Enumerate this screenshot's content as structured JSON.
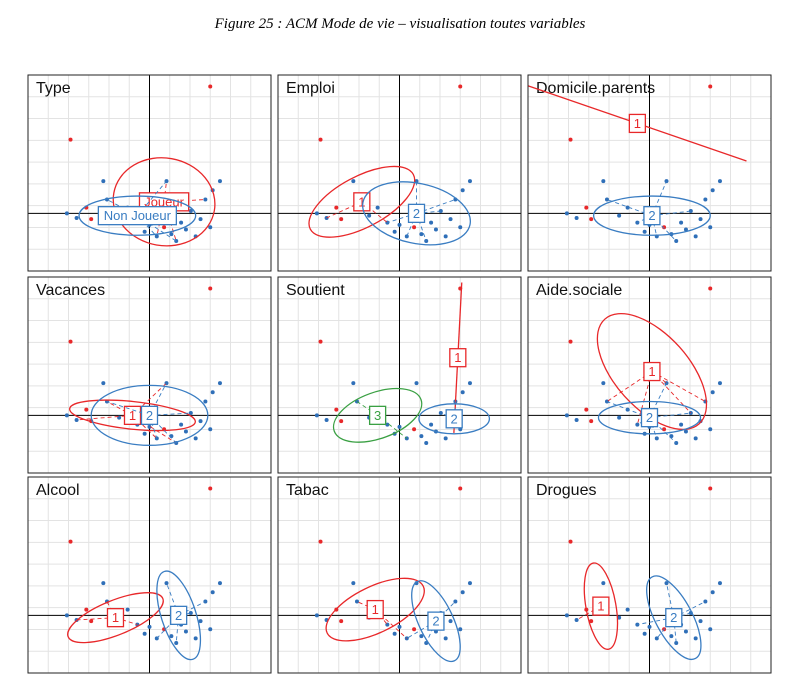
{
  "caption": "Figure 25 : ACM Mode de vie – visualisation toutes variables",
  "colors": {
    "modality_1": "#e8282a",
    "modality_2": "#3a7dc2",
    "modality_3": "#3aa043",
    "axes": "#000000",
    "grid": "#e3e3e3",
    "points": "#2f6fb8"
  },
  "chart_data": {
    "type": "scatter",
    "title": "",
    "grid": true,
    "xlim": [
      -1,
      1
    ],
    "ylim": [
      -0.5,
      1.2
    ],
    "individuals": [
      {
        "x": 0.5,
        "y": 1.1,
        "c": "red"
      },
      {
        "x": -0.65,
        "y": 0.64,
        "c": "red"
      },
      {
        "x": -0.38,
        "y": 0.28,
        "c": "blue"
      },
      {
        "x": 0.14,
        "y": 0.28,
        "c": "blue"
      },
      {
        "x": 0.58,
        "y": 0.28,
        "c": "blue"
      },
      {
        "x": -0.68,
        "y": 0.0,
        "c": "blue"
      },
      {
        "x": -0.6,
        "y": -0.04,
        "c": "blue"
      },
      {
        "x": -0.52,
        "y": 0.05,
        "c": "red"
      },
      {
        "x": -0.48,
        "y": -0.05,
        "c": "red"
      },
      {
        "x": -0.35,
        "y": 0.12,
        "c": "blue"
      },
      {
        "x": -0.25,
        "y": -0.02,
        "c": "blue"
      },
      {
        "x": -0.18,
        "y": 0.05,
        "c": "blue"
      },
      {
        "x": -0.1,
        "y": -0.08,
        "c": "blue"
      },
      {
        "x": -0.04,
        "y": -0.16,
        "c": "blue"
      },
      {
        "x": 0.0,
        "y": -0.1,
        "c": "blue"
      },
      {
        "x": 0.06,
        "y": -0.2,
        "c": "blue"
      },
      {
        "x": 0.12,
        "y": -0.12,
        "c": "red"
      },
      {
        "x": 0.18,
        "y": -0.18,
        "c": "blue"
      },
      {
        "x": 0.22,
        "y": -0.24,
        "c": "blue"
      },
      {
        "x": 0.26,
        "y": -0.08,
        "c": "blue"
      },
      {
        "x": 0.3,
        "y": -0.14,
        "c": "blue"
      },
      {
        "x": 0.34,
        "y": 0.02,
        "c": "blue"
      },
      {
        "x": 0.38,
        "y": -0.2,
        "c": "blue"
      },
      {
        "x": 0.42,
        "y": -0.05,
        "c": "blue"
      },
      {
        "x": 0.46,
        "y": 0.12,
        "c": "blue"
      },
      {
        "x": 0.5,
        "y": -0.12,
        "c": "blue"
      },
      {
        "x": 0.52,
        "y": 0.2,
        "c": "blue"
      }
    ],
    "panels": [
      {
        "title": "Type",
        "categories": [
          {
            "label": "Joueur",
            "color": "red",
            "cx": 0.12,
            "cy": 0.1,
            "rx": 0.42,
            "ry": 0.38,
            "rot": -10
          },
          {
            "label": "Non Joueur",
            "color": "blue",
            "cx": -0.1,
            "cy": -0.02,
            "rx": 0.48,
            "ry": 0.17,
            "rot": 0
          }
        ]
      },
      {
        "title": "Emploi",
        "categories": [
          {
            "label": "1",
            "color": "red",
            "cx": -0.31,
            "cy": 0.1,
            "rx": 0.48,
            "ry": 0.22,
            "rot": 28
          },
          {
            "label": "2",
            "color": "blue",
            "cx": 0.14,
            "cy": 0.0,
            "rx": 0.45,
            "ry": 0.26,
            "rot": -12
          }
        ]
      },
      {
        "title": "Domicile.parents",
        "categories": [
          {
            "label": "1",
            "color": "red",
            "cx": -0.1,
            "cy": 0.78,
            "rx": 0.95,
            "ry": 0.015,
            "rot": -19,
            "line": true
          },
          {
            "label": "2",
            "color": "blue",
            "cx": 0.02,
            "cy": -0.02,
            "rx": 0.48,
            "ry": 0.17,
            "rot": 0
          }
        ]
      },
      {
        "title": "Vacances",
        "categories": [
          {
            "label": "1",
            "color": "red",
            "cx": -0.14,
            "cy": 0.0,
            "rx": 0.52,
            "ry": 0.12,
            "rot": -6
          },
          {
            "label": "2",
            "color": "blue",
            "cx": 0.0,
            "cy": 0.0,
            "rx": 0.48,
            "ry": 0.26,
            "rot": 0
          }
        ]
      },
      {
        "title": "Soutient",
        "categories": [
          {
            "label": "1",
            "color": "red",
            "cx": 0.48,
            "cy": 0.5,
            "rx": 0.62,
            "ry": 0.015,
            "rot": 87,
            "line": true
          },
          {
            "label": "2",
            "color": "blue",
            "cx": 0.45,
            "cy": -0.03,
            "rx": 0.29,
            "ry": 0.13,
            "rot": 0
          },
          {
            "label": "3",
            "color": "green",
            "cx": -0.18,
            "cy": 0.0,
            "rx": 0.38,
            "ry": 0.2,
            "rot": 20
          }
        ]
      },
      {
        "title": "Aide.sociale",
        "categories": [
          {
            "label": "1",
            "color": "red",
            "cx": 0.02,
            "cy": 0.38,
            "rx": 0.58,
            "ry": 0.32,
            "rot": -48
          },
          {
            "label": "2",
            "color": "blue",
            "cx": 0.0,
            "cy": -0.02,
            "rx": 0.42,
            "ry": 0.14,
            "rot": 0
          }
        ]
      },
      {
        "title": "Alcool",
        "categories": [
          {
            "label": "1",
            "color": "red",
            "cx": -0.28,
            "cy": -0.02,
            "rx": 0.42,
            "ry": 0.15,
            "rot": 22
          },
          {
            "label": "2",
            "color": "blue",
            "cx": 0.24,
            "cy": 0.0,
            "rx": 0.38,
            "ry": 0.15,
            "rot": -72
          }
        ]
      },
      {
        "title": "Tabac",
        "categories": [
          {
            "label": "1",
            "color": "red",
            "cx": -0.2,
            "cy": 0.05,
            "rx": 0.44,
            "ry": 0.2,
            "rot": 26
          },
          {
            "label": "2",
            "color": "blue",
            "cx": 0.3,
            "cy": -0.05,
            "rx": 0.36,
            "ry": 0.15,
            "rot": -65
          }
        ]
      },
      {
        "title": "Drogues",
        "categories": [
          {
            "label": "1",
            "color": "red",
            "cx": -0.4,
            "cy": 0.08,
            "rx": 0.36,
            "ry": 0.13,
            "rot": -80
          },
          {
            "label": "2",
            "color": "blue",
            "cx": 0.2,
            "cy": -0.02,
            "rx": 0.38,
            "ry": 0.16,
            "rot": -62
          }
        ]
      }
    ]
  }
}
